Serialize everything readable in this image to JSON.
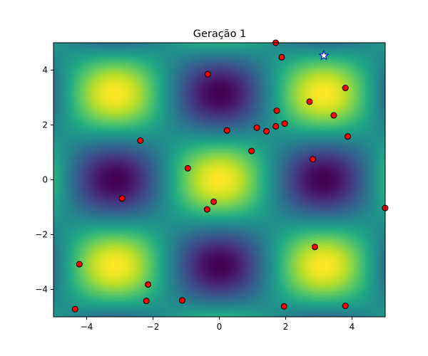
{
  "chart_data": {
    "type": "heatmap",
    "title": "Geração 1",
    "xlabel": "",
    "ylabel": "",
    "xlim": [
      -5,
      5
    ],
    "ylim": [
      -5,
      5
    ],
    "xticks": [
      -4,
      -2,
      0,
      2,
      4
    ],
    "yticks": [
      -4,
      -2,
      0,
      2,
      4
    ],
    "xtick_labels": [
      "−4",
      "−2",
      "0",
      "2",
      "4"
    ],
    "ytick_labels": [
      "−4",
      "−2",
      "0",
      "2",
      "4"
    ],
    "grid": false,
    "colormap": "viridis",
    "surface": "f(x, y) = cos(x) · cos(y)",
    "population": {
      "name": "population",
      "color": "#ff0000",
      "edge_color": "#000000",
      "points": [
        {
          "x": 1.7,
          "y": 5.0
        },
        {
          "x": 1.88,
          "y": 4.47
        },
        {
          "x": -0.35,
          "y": 3.85
        },
        {
          "x": 3.8,
          "y": 3.35
        },
        {
          "x": 2.72,
          "y": 2.85
        },
        {
          "x": 1.73,
          "y": 2.52
        },
        {
          "x": 3.45,
          "y": 2.35
        },
        {
          "x": 1.97,
          "y": 2.05
        },
        {
          "x": 1.13,
          "y": 1.9
        },
        {
          "x": 1.7,
          "y": 1.95
        },
        {
          "x": 0.23,
          "y": 1.8
        },
        {
          "x": 1.42,
          "y": 1.77
        },
        {
          "x": 3.87,
          "y": 1.58
        },
        {
          "x": -2.38,
          "y": 1.43
        },
        {
          "x": 0.97,
          "y": 1.05
        },
        {
          "x": 2.82,
          "y": 0.75
        },
        {
          "x": -0.95,
          "y": 0.42
        },
        {
          "x": -2.93,
          "y": -0.68
        },
        {
          "x": -0.17,
          "y": -0.8
        },
        {
          "x": -0.37,
          "y": -1.08
        },
        {
          "x": 5.0,
          "y": -1.03
        },
        {
          "x": 2.88,
          "y": -2.45
        },
        {
          "x": -4.22,
          "y": -3.08
        },
        {
          "x": -2.15,
          "y": -3.82
        },
        {
          "x": -2.2,
          "y": -4.42
        },
        {
          "x": -1.12,
          "y": -4.4
        },
        {
          "x": -4.35,
          "y": -4.72
        },
        {
          "x": 1.95,
          "y": -4.62
        },
        {
          "x": 3.8,
          "y": -4.6
        }
      ]
    },
    "best": {
      "name": "best",
      "marker": "star",
      "x": 3.15,
      "y": 4.53,
      "color": "#ffffff",
      "edge_color": "#0000cc"
    }
  }
}
